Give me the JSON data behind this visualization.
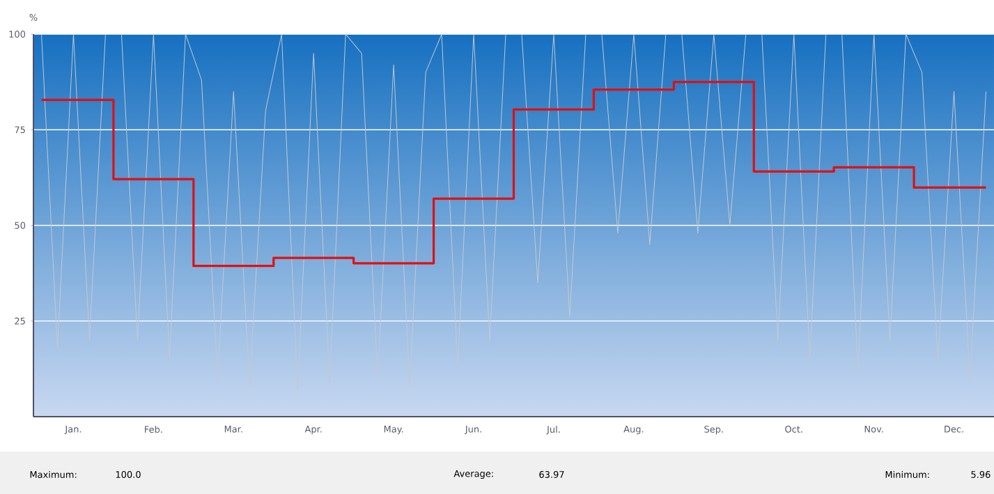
{
  "chart_data": {
    "type": "step",
    "ylabel": "%",
    "categories": [
      null,
      null,
      "Jan.",
      null,
      null,
      null,
      null,
      "Feb.",
      null,
      null,
      null,
      null,
      "Mar.",
      null,
      null,
      null,
      null,
      "Apr.",
      null,
      null,
      null,
      null,
      "May.",
      null,
      null,
      null,
      null,
      "Jun.",
      null,
      null,
      null,
      null,
      "Jul.",
      null,
      null,
      null,
      null,
      "Aug.",
      null,
      null,
      null,
      null,
      "Sep.",
      null,
      null,
      null,
      null,
      "Oct.",
      null,
      null,
      null,
      null,
      "Nov.",
      null,
      null,
      null,
      null,
      "Dec.",
      null,
      null
    ],
    "series": [
      {
        "type": "line",
        "color": "#c4c8d0",
        "values": [
          100,
          18,
          100,
          20,
          100,
          100,
          20,
          100,
          15,
          100,
          88,
          10,
          85,
          8,
          80,
          100,
          7,
          95,
          9,
          100,
          95,
          10,
          92,
          8,
          90,
          100,
          13,
          100,
          20,
          100,
          100,
          35,
          100,
          26,
          100,
          100,
          48,
          100,
          45,
          100,
          100,
          48,
          100,
          50,
          100,
          100,
          20,
          100,
          15,
          100,
          100,
          12,
          100,
          20,
          100,
          90,
          15,
          85,
          10,
          85
        ]
      },
      {
        "color": "#e01010",
        "values": [
          82.8,
          82.8,
          82.8,
          82.8,
          82.8,
          62.1,
          62.1,
          62.1,
          62.1,
          62.1,
          39.4,
          39.4,
          39.4,
          39.4,
          39.4,
          41.5,
          41.5,
          41.5,
          41.5,
          41.5,
          40.1,
          40.1,
          40.1,
          40.1,
          40.1,
          57.0,
          57.0,
          57.0,
          57.0,
          57.0,
          80.3,
          80.3,
          80.3,
          80.3,
          80.3,
          85.5,
          85.5,
          85.5,
          85.5,
          85.5,
          87.5,
          87.5,
          87.5,
          87.5,
          87.5,
          64.1,
          64.1,
          64.1,
          64.1,
          64.1,
          65.2,
          65.2,
          65.2,
          65.2,
          65.2,
          59.9,
          59.9,
          59.9,
          59.9,
          59.9
        ]
      }
    ],
    "ylim": [
      0,
      100
    ],
    "yticks": [
      25,
      50,
      75,
      100
    ],
    "grid": "y",
    "annotations": [
      "Maximum:",
      "100.0",
      "Average:",
      "63.97",
      "Minimum:",
      "5.96"
    ]
  }
}
